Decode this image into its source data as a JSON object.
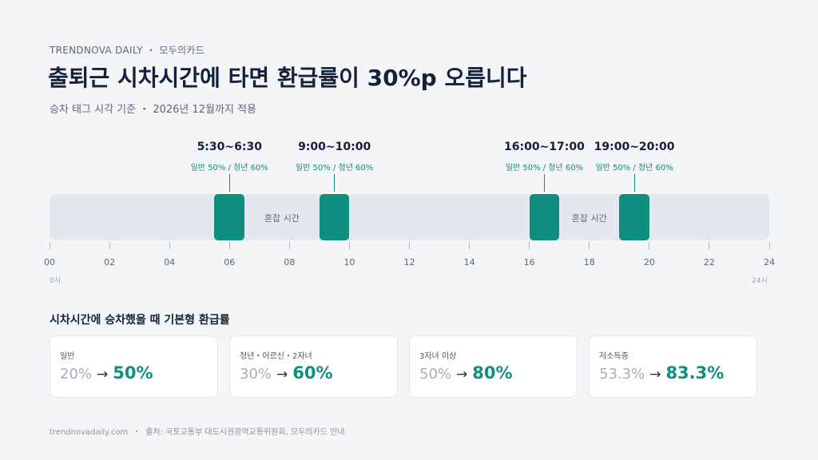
{
  "header": {
    "kicker": "TRENDNOVA DAILY ・ 모두의카드",
    "title": "출퇴근 시차시간에 타면 환급률이 30%p 오릅니다",
    "subtitle": "승차 태그 시각 기준 ・ 2026년 12월까지 적용"
  },
  "timeline": {
    "tick_labels": [
      "00",
      "02",
      "04",
      "06",
      "08",
      "10",
      "12",
      "14",
      "16",
      "18",
      "20",
      "22",
      "24"
    ],
    "start_label": "0시",
    "end_label": "24시",
    "rush_label": "혼잡 시간",
    "bands": [
      {
        "label": "5:30~6:30",
        "rates": "일반 50% / 청년 60%",
        "start_hour": 5.5,
        "end_hour": 6.5
      },
      {
        "label": "9:00~10:00",
        "rates": "일반 50% / 청년 60%",
        "start_hour": 9,
        "end_hour": 10
      },
      {
        "label": "16:00~17:00",
        "rates": "일반 50% / 청년 60%",
        "start_hour": 16,
        "end_hour": 17
      },
      {
        "label": "19:00~20:00",
        "rates": "일반 50% / 청년 60%",
        "start_hour": 19,
        "end_hour": 20
      }
    ],
    "colors": {
      "band": "#108f80",
      "track": "#e3e8ee"
    }
  },
  "rates_section": {
    "title": "시차시간에 승차했을 때 기본형 환급률",
    "arrow": "→",
    "cards": [
      {
        "label": "일반",
        "from": "20%",
        "to": "50%"
      },
      {
        "label": "청년・어르신・2자녀",
        "from": "30%",
        "to": "60%"
      },
      {
        "label": "3자녀 이상",
        "from": "50%",
        "to": "80%"
      },
      {
        "label": "저소득층",
        "from": "53.3%",
        "to": "83.3%"
      }
    ]
  },
  "footer": {
    "site": "trendnovadaily.com",
    "separator": "・",
    "source": "출처: 국토교통부 대도시권광역교통위원회, 모두의카드 안내"
  }
}
